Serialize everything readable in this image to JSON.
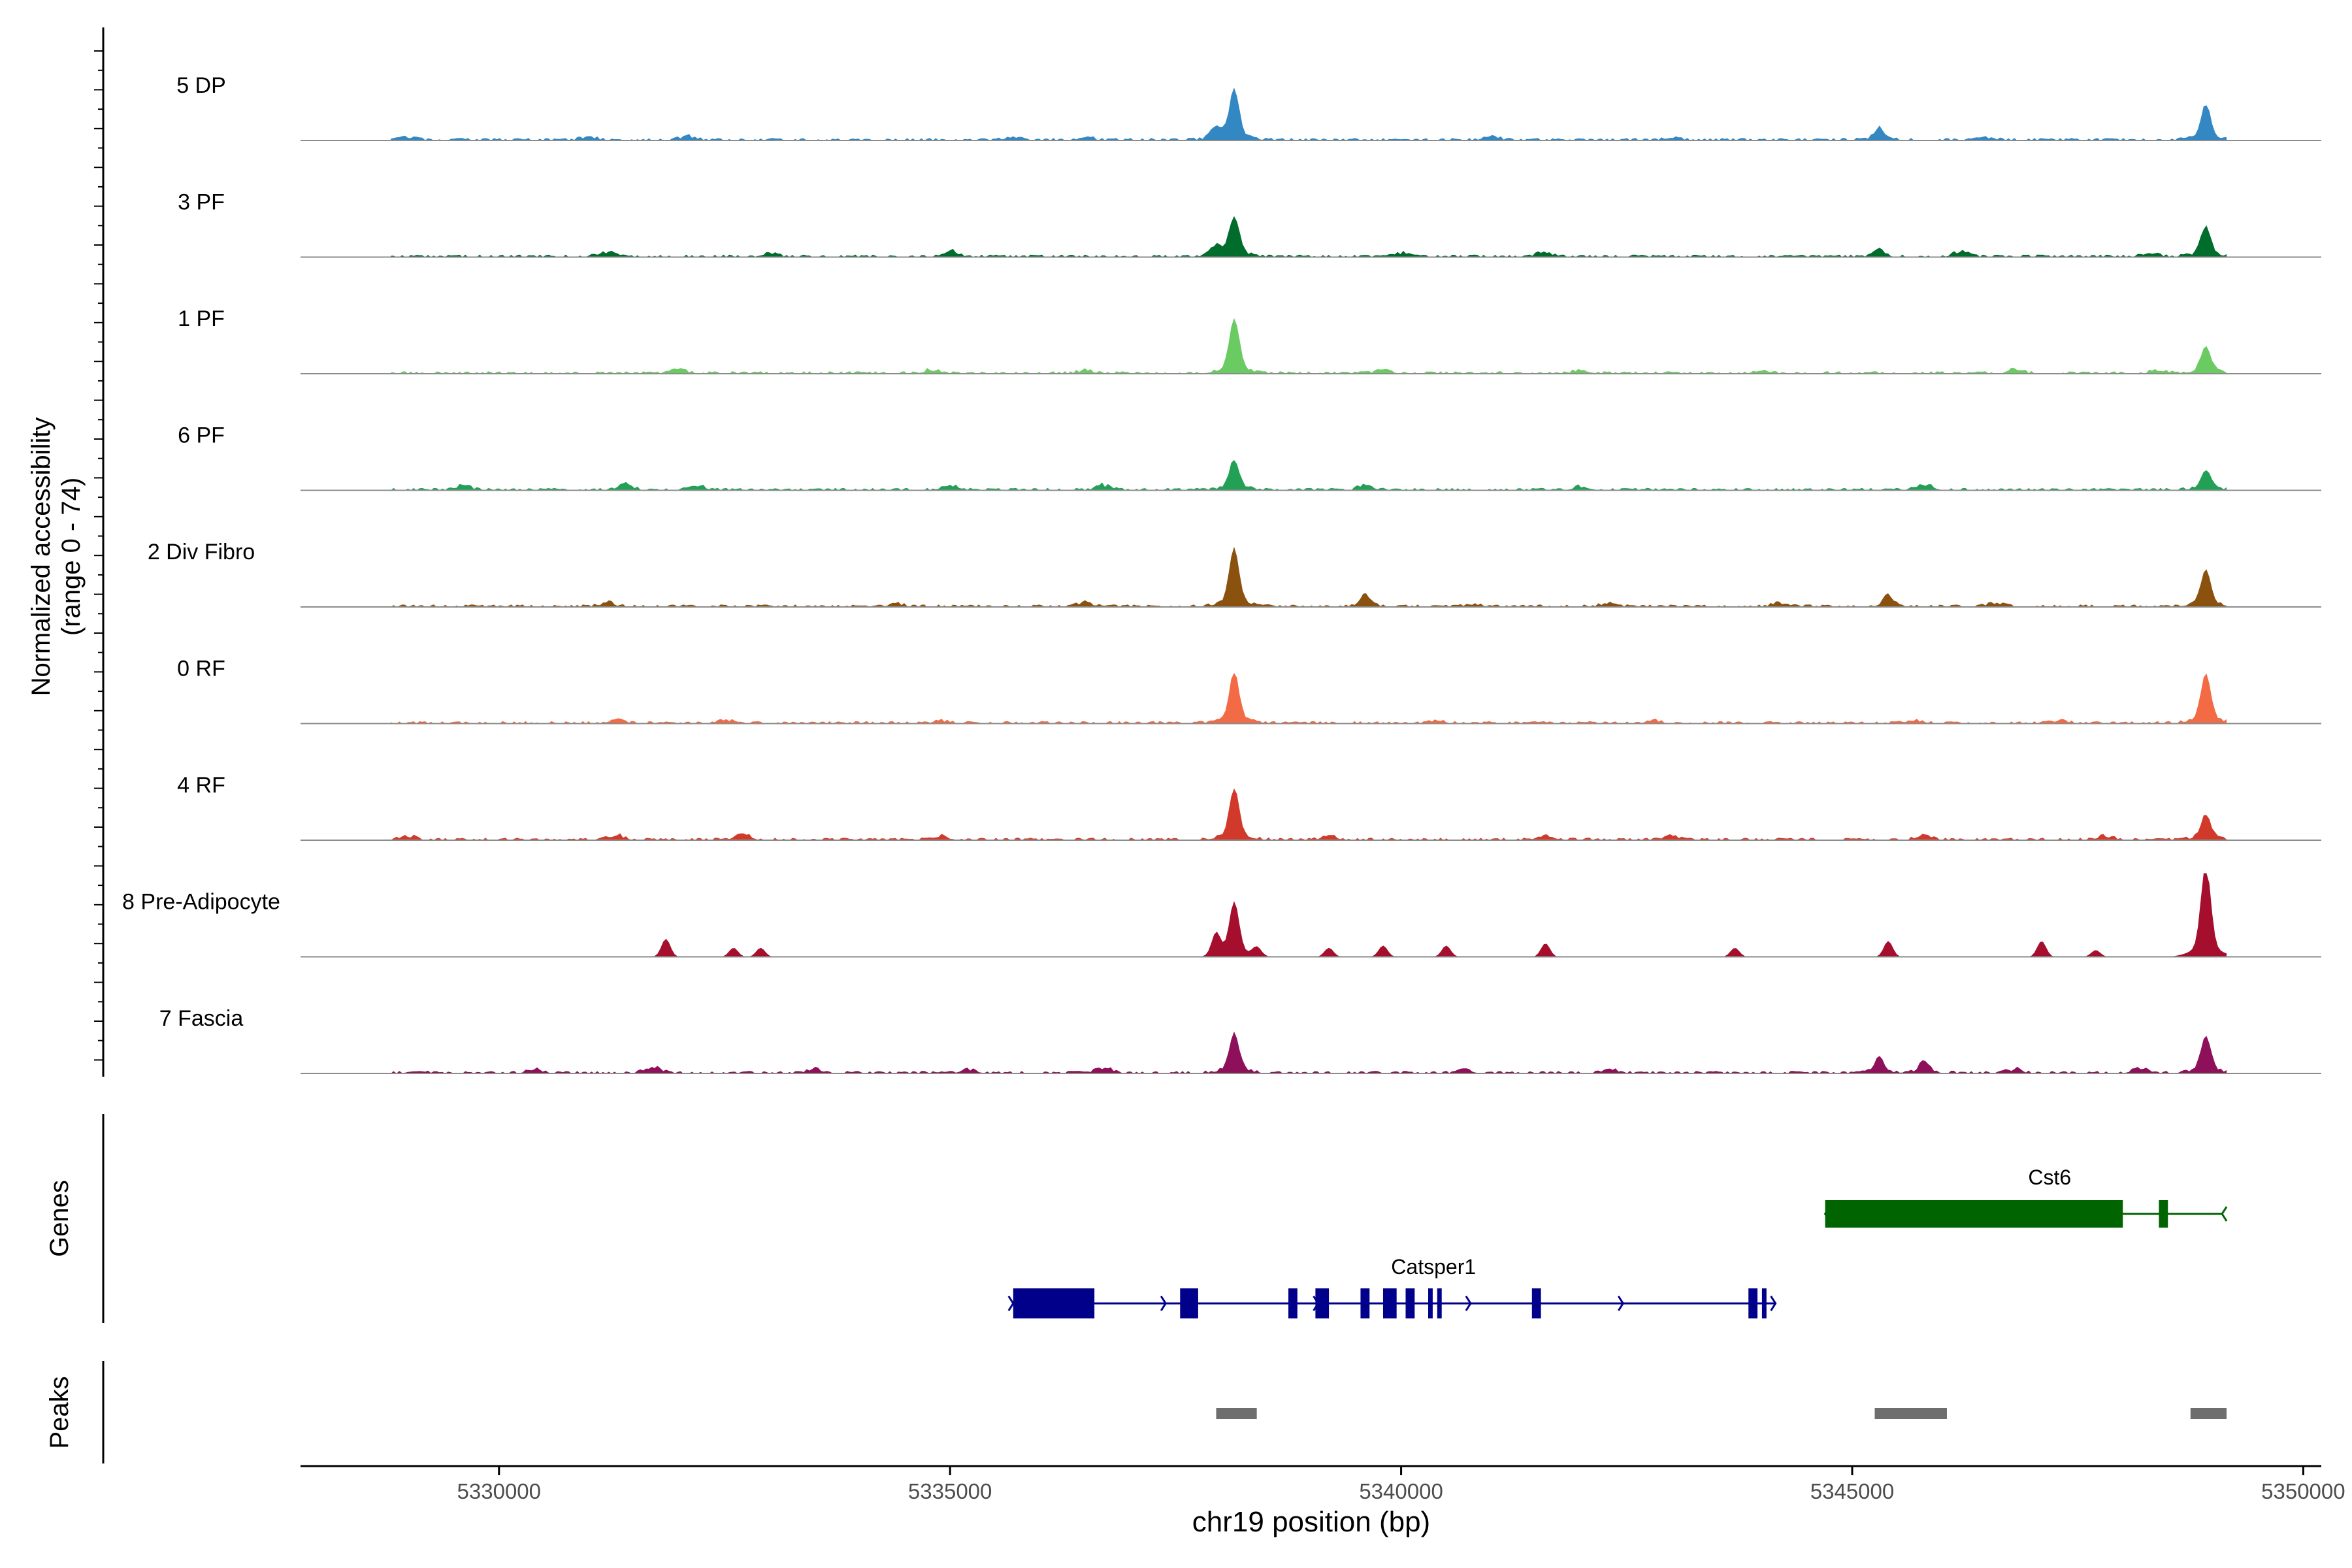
{
  "chart_data": {
    "type": "area",
    "title": "",
    "ylabel_line1": "Normalized accessibility",
    "ylabel_line2": "(range 0 - 74)",
    "ylim": [
      0,
      74
    ],
    "xlabel": "chr19 position (bp)",
    "xlim": [
      5327800,
      5350200
    ],
    "x_ticks": [
      5330000,
      5335000,
      5340000,
      5345000,
      5350000
    ],
    "x_tick_labels": [
      "5330000",
      "5335000",
      "5340000",
      "5345000",
      "5350000"
    ],
    "tracks": [
      {
        "name": "5 DP",
        "color": "#3388C4",
        "peaks": [
          [
            5338150,
            40
          ],
          [
            5348920,
            28
          ],
          [
            5345300,
            10
          ],
          [
            5337950,
            10
          ]
        ],
        "blips": [
          [
            5329000,
            3
          ],
          [
            5331000,
            3
          ],
          [
            5332100,
            4
          ],
          [
            5335700,
            3
          ],
          [
            5336500,
            3
          ],
          [
            5341000,
            4
          ],
          [
            5343000,
            3
          ],
          [
            5346500,
            3
          ]
        ]
      },
      {
        "name": "3 PF",
        "color": "#006D2C",
        "peaks": [
          [
            5338150,
            32
          ],
          [
            5348920,
            24
          ],
          [
            5337950,
            8
          ],
          [
            5345300,
            6
          ]
        ],
        "blips": [
          [
            5331200,
            5
          ],
          [
            5333000,
            4
          ],
          [
            5335000,
            6
          ],
          [
            5340000,
            4
          ],
          [
            5341600,
            5
          ],
          [
            5346200,
            5
          ],
          [
            5348300,
            5
          ]
        ]
      },
      {
        "name": "1 PF",
        "color": "#6ACB63",
        "peaks": [
          [
            5338150,
            44
          ],
          [
            5348920,
            22
          ]
        ],
        "blips": [
          [
            5332000,
            4
          ],
          [
            5334800,
            4
          ],
          [
            5336500,
            3
          ],
          [
            5339800,
            3
          ],
          [
            5342000,
            4
          ],
          [
            5344000,
            3
          ],
          [
            5346800,
            4
          ],
          [
            5348400,
            4
          ]
        ]
      },
      {
        "name": "6 PF",
        "color": "#22A055",
        "peaks": [
          [
            5338150,
            24
          ],
          [
            5348920,
            16
          ]
        ],
        "blips": [
          [
            5329600,
            5
          ],
          [
            5331400,
            6
          ],
          [
            5332200,
            5
          ],
          [
            5335000,
            5
          ],
          [
            5336700,
            5
          ],
          [
            5339600,
            4
          ],
          [
            5342000,
            4
          ],
          [
            5345800,
            6
          ]
        ]
      },
      {
        "name": "2 Div Fibro",
        "color": "#8B510F",
        "peaks": [
          [
            5338150,
            46
          ],
          [
            5348920,
            30
          ],
          [
            5339600,
            10
          ],
          [
            5345400,
            9
          ]
        ],
        "blips": [
          [
            5331200,
            4
          ],
          [
            5334400,
            3
          ],
          [
            5336500,
            4
          ],
          [
            5340800,
            3
          ],
          [
            5342300,
            4
          ],
          [
            5344200,
            4
          ],
          [
            5346600,
            4
          ]
        ]
      },
      {
        "name": "0 RF",
        "color": "#F26B44",
        "peaks": [
          [
            5338150,
            40
          ],
          [
            5348920,
            40
          ]
        ],
        "blips": [
          [
            5331300,
            3
          ],
          [
            5332500,
            3
          ],
          [
            5334900,
            3
          ],
          [
            5340400,
            3
          ],
          [
            5342800,
            3
          ],
          [
            5345700,
            3
          ],
          [
            5347300,
            3
          ]
        ]
      },
      {
        "name": "4 RF",
        "color": "#D13A2A",
        "peaks": [
          [
            5338150,
            40
          ],
          [
            5348920,
            20
          ]
        ],
        "blips": [
          [
            5329000,
            4
          ],
          [
            5331300,
            5
          ],
          [
            5332700,
            5
          ],
          [
            5334900,
            4
          ],
          [
            5339200,
            4
          ],
          [
            5341600,
            5
          ],
          [
            5343000,
            4
          ],
          [
            5345800,
            5
          ],
          [
            5347800,
            4
          ]
        ]
      },
      {
        "name": "8 Pre-Adipocyte",
        "color": "#A50F2D",
        "peaks": [
          [
            5338150,
            44
          ],
          [
            5348920,
            74
          ]
        ],
        "blips": [
          [
            5331850,
            16
          ],
          [
            5332600,
            8
          ],
          [
            5332900,
            8
          ],
          [
            5337950,
            20
          ],
          [
            5338400,
            8
          ],
          [
            5339200,
            8
          ],
          [
            5339800,
            10
          ],
          [
            5340500,
            10
          ],
          [
            5341600,
            12
          ],
          [
            5343700,
            8
          ],
          [
            5345400,
            14
          ],
          [
            5347100,
            14
          ],
          [
            5347700,
            6
          ]
        ]
      },
      {
        "name": "7 Fascia",
        "color": "#8E0F5A",
        "peaks": [
          [
            5338150,
            32
          ],
          [
            5348920,
            30
          ],
          [
            5345300,
            12
          ],
          [
            5345800,
            10
          ]
        ],
        "blips": [
          [
            5329100,
            3
          ],
          [
            5330400,
            4
          ],
          [
            5331700,
            6
          ],
          [
            5333500,
            4
          ],
          [
            5335200,
            4
          ],
          [
            5336700,
            6
          ],
          [
            5340700,
            3
          ],
          [
            5342300,
            4
          ],
          [
            5346800,
            4
          ],
          [
            5348200,
            5
          ]
        ]
      }
    ],
    "genes_label": "Genes",
    "genes": [
      {
        "name": "Cst6",
        "strand": "-",
        "color": "#006400",
        "start": 5344700,
        "end": 5349100,
        "exons": [
          [
            5344700,
            5348000
          ],
          [
            5348400,
            5348500
          ]
        ]
      },
      {
        "name": "Catsper1",
        "strand": "+",
        "color": "#00008B",
        "start": 5335700,
        "end": 5344150,
        "exons": [
          [
            5335700,
            5336600
          ],
          [
            5337550,
            5337750
          ],
          [
            5338750,
            5338850
          ],
          [
            5339050,
            5339200
          ],
          [
            5339550,
            5339650
          ],
          [
            5339800,
            5339950
          ],
          [
            5340050,
            5340150
          ],
          [
            5340300,
            5340350
          ],
          [
            5340400,
            5340450
          ],
          [
            5341450,
            5341550
          ],
          [
            5343850,
            5343950
          ],
          [
            5344000,
            5344050
          ]
        ]
      }
    ],
    "peaks_label": "Peaks",
    "peak_regions": [
      [
        5337950,
        5338400
      ],
      [
        5345250,
        5346050
      ],
      [
        5348750,
        5349150
      ]
    ]
  }
}
